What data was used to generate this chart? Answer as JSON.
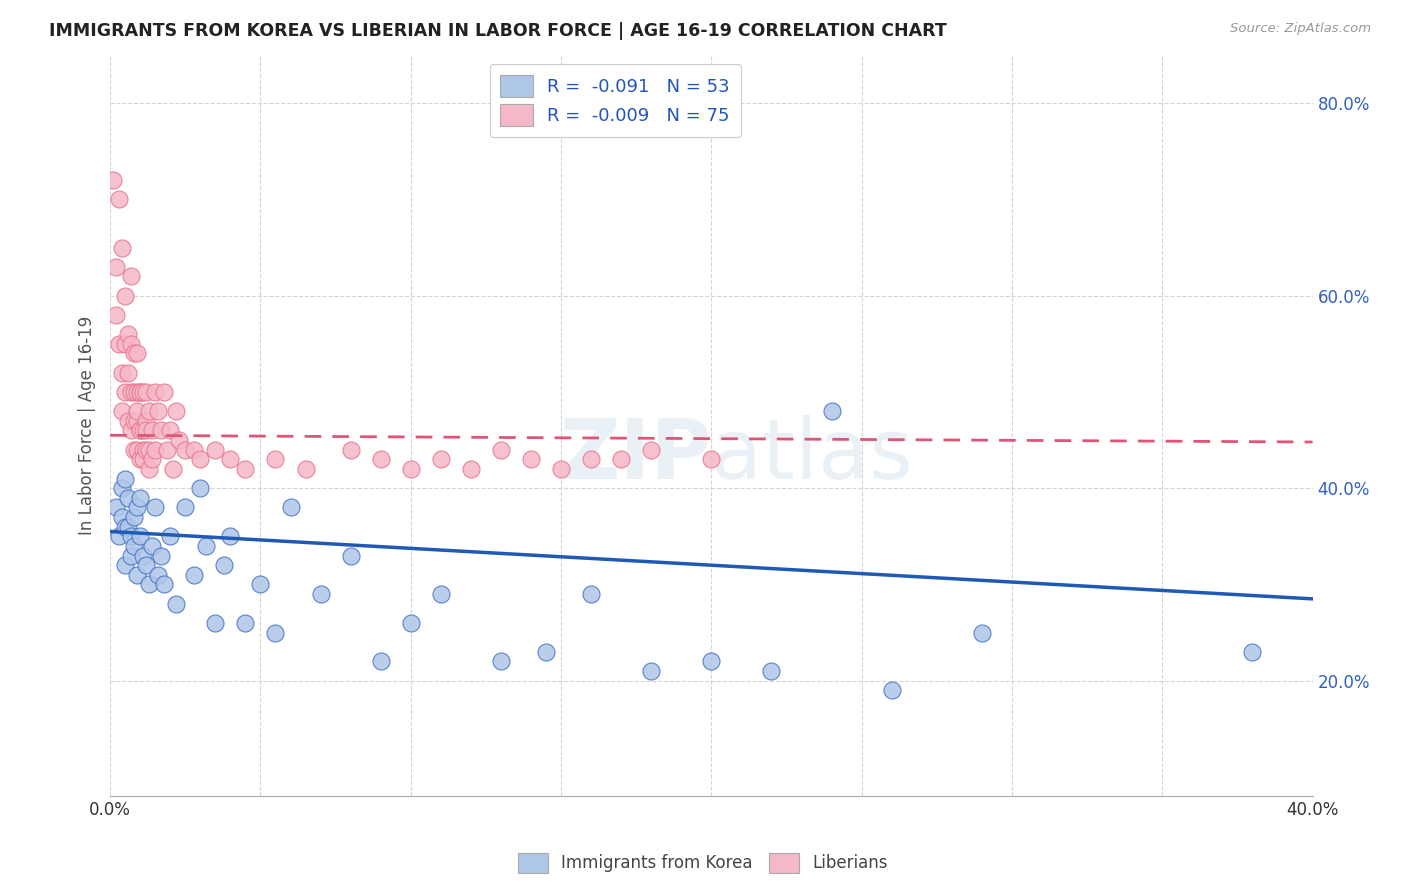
{
  "title": "IMMIGRANTS FROM KOREA VS LIBERIAN IN LABOR FORCE | AGE 16-19 CORRELATION CHART",
  "source": "Source: ZipAtlas.com",
  "ylabel": "In Labor Force | Age 16-19",
  "xlim": [
    0.0,
    0.4
  ],
  "ylim": [
    0.08,
    0.85
  ],
  "x_ticks": [
    0.0,
    0.05,
    0.1,
    0.15,
    0.2,
    0.25,
    0.3,
    0.35,
    0.4
  ],
  "x_tick_labels": [
    "0.0%",
    "",
    "",
    "",
    "",
    "",
    "",
    "",
    "40.0%"
  ],
  "y_ticks": [
    0.2,
    0.4,
    0.6,
    0.8
  ],
  "y_tick_labels": [
    "20.0%",
    "40.0%",
    "60.0%",
    "80.0%"
  ],
  "korea_color": "#aec6e8",
  "liberia_color": "#f5b8c8",
  "korea_edge_color": "#4472c4",
  "liberia_edge_color": "#e8748a",
  "korea_line_color": "#1f5ab5",
  "liberia_line_color": "#e05575",
  "legend_r_korea": "R =  -0.091",
  "legend_n_korea": "N = 53",
  "legend_r_liberia": "R =  -0.009",
  "legend_n_liberia": "N = 75",
  "korea_scatter_x": [
    0.002,
    0.003,
    0.004,
    0.004,
    0.005,
    0.005,
    0.005,
    0.006,
    0.006,
    0.007,
    0.007,
    0.008,
    0.008,
    0.009,
    0.009,
    0.01,
    0.01,
    0.011,
    0.012,
    0.013,
    0.014,
    0.015,
    0.016,
    0.017,
    0.018,
    0.02,
    0.022,
    0.025,
    0.028,
    0.03,
    0.032,
    0.035,
    0.038,
    0.04,
    0.045,
    0.05,
    0.055,
    0.06,
    0.07,
    0.08,
    0.09,
    0.1,
    0.11,
    0.13,
    0.145,
    0.16,
    0.18,
    0.2,
    0.22,
    0.24,
    0.26,
    0.29,
    0.38
  ],
  "korea_scatter_y": [
    0.38,
    0.35,
    0.4,
    0.37,
    0.36,
    0.32,
    0.41,
    0.36,
    0.39,
    0.33,
    0.35,
    0.37,
    0.34,
    0.31,
    0.38,
    0.35,
    0.39,
    0.33,
    0.32,
    0.3,
    0.34,
    0.38,
    0.31,
    0.33,
    0.3,
    0.35,
    0.28,
    0.38,
    0.31,
    0.4,
    0.34,
    0.26,
    0.32,
    0.35,
    0.26,
    0.3,
    0.25,
    0.38,
    0.29,
    0.33,
    0.22,
    0.26,
    0.29,
    0.22,
    0.23,
    0.29,
    0.21,
    0.22,
    0.21,
    0.48,
    0.19,
    0.25,
    0.23
  ],
  "liberia_scatter_x": [
    0.001,
    0.002,
    0.002,
    0.003,
    0.003,
    0.004,
    0.004,
    0.004,
    0.005,
    0.005,
    0.005,
    0.006,
    0.006,
    0.006,
    0.007,
    0.007,
    0.007,
    0.007,
    0.008,
    0.008,
    0.008,
    0.008,
    0.009,
    0.009,
    0.009,
    0.009,
    0.009,
    0.01,
    0.01,
    0.01,
    0.01,
    0.01,
    0.011,
    0.011,
    0.011,
    0.011,
    0.012,
    0.012,
    0.012,
    0.012,
    0.013,
    0.013,
    0.013,
    0.014,
    0.014,
    0.015,
    0.015,
    0.016,
    0.017,
    0.018,
    0.019,
    0.02,
    0.021,
    0.022,
    0.023,
    0.025,
    0.028,
    0.03,
    0.035,
    0.04,
    0.045,
    0.055,
    0.065,
    0.08,
    0.09,
    0.1,
    0.11,
    0.12,
    0.13,
    0.14,
    0.15,
    0.16,
    0.17,
    0.18,
    0.2
  ],
  "liberia_scatter_y": [
    0.72,
    0.63,
    0.58,
    0.7,
    0.55,
    0.65,
    0.52,
    0.48,
    0.6,
    0.55,
    0.5,
    0.56,
    0.52,
    0.47,
    0.62,
    0.55,
    0.5,
    0.46,
    0.54,
    0.5,
    0.47,
    0.44,
    0.5,
    0.47,
    0.44,
    0.54,
    0.48,
    0.5,
    0.46,
    0.43,
    0.5,
    0.46,
    0.5,
    0.46,
    0.44,
    0.43,
    0.5,
    0.47,
    0.44,
    0.46,
    0.48,
    0.44,
    0.42,
    0.46,
    0.43,
    0.5,
    0.44,
    0.48,
    0.46,
    0.5,
    0.44,
    0.46,
    0.42,
    0.48,
    0.45,
    0.44,
    0.44,
    0.43,
    0.44,
    0.43,
    0.42,
    0.43,
    0.42,
    0.44,
    0.43,
    0.42,
    0.43,
    0.42,
    0.44,
    0.43,
    0.42,
    0.43,
    0.43,
    0.44,
    0.43
  ],
  "korea_trend_x": [
    0.0,
    0.4
  ],
  "korea_trend_y": [
    0.355,
    0.285
  ],
  "liberia_trend_x": [
    0.0,
    0.4
  ],
  "liberia_trend_y": [
    0.455,
    0.448
  ],
  "watermark_line1": "ZIP",
  "watermark_line2": "atlas",
  "background_color": "#ffffff",
  "grid_color": "#d0d0d0"
}
